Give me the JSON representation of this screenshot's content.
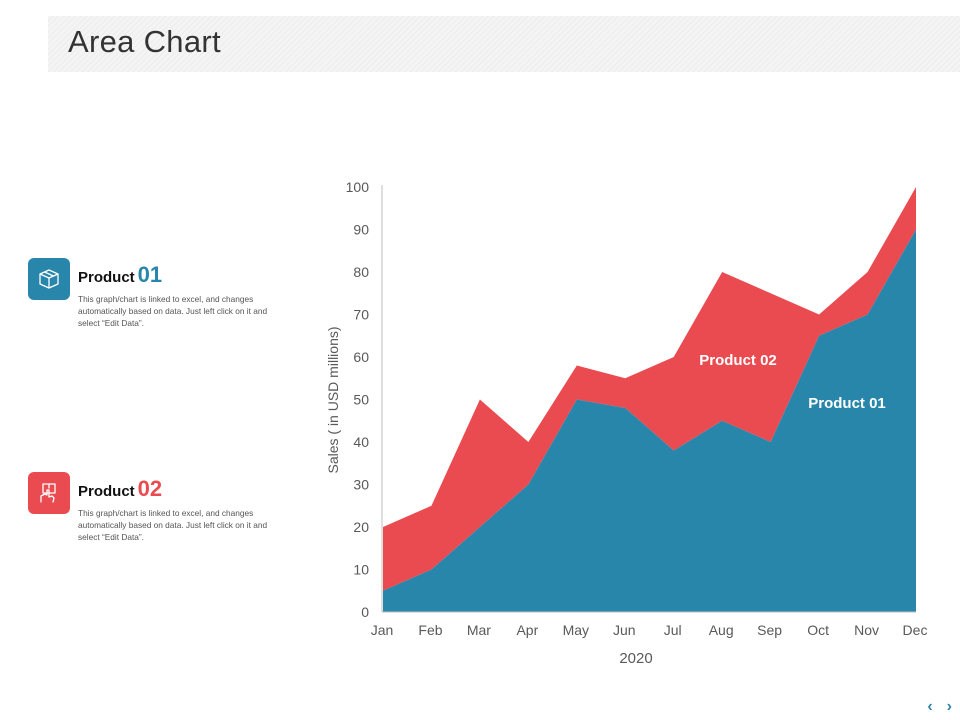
{
  "header": {
    "title": "Area Chart"
  },
  "legend": [
    {
      "name": "Product",
      "num": "01",
      "color": "#2986ab",
      "icon": "box-icon",
      "desc": "This graph/chart is linked to excel, and changes automatically based on data. Just left click on it and select “Edit Data”."
    },
    {
      "name": "Product",
      "num": "02",
      "color": "#e94b50",
      "icon": "hand-package-icon",
      "desc": "This graph/chart is linked to excel, and changes automatically based on data. Just left click on it and select “Edit Data”."
    }
  ],
  "nav": {
    "prev": "‹",
    "next": "›"
  },
  "chart_data": {
    "type": "area",
    "stacked": true,
    "categories": [
      "Jan",
      "Feb",
      "Mar",
      "Apr",
      "May",
      "Jun",
      "Jul",
      "Aug",
      "Sep",
      "Oct",
      "Nov",
      "Dec"
    ],
    "series": [
      {
        "name": "Product 01",
        "color": "#2986ab",
        "values": [
          5,
          10,
          20,
          30,
          50,
          48,
          38,
          45,
          40,
          65,
          70,
          90
        ]
      },
      {
        "name": "Product 02",
        "color": "#e94b50",
        "values": [
          15,
          15,
          30,
          10,
          8,
          7,
          22,
          35,
          35,
          5,
          10,
          10
        ]
      }
    ],
    "series_labels": [
      "Product 02",
      "Product 01"
    ],
    "xlabel": "2020",
    "ylabel": "Sales  ( in USD millions)",
    "ylim": [
      0,
      100
    ],
    "yticks": [
      0,
      10,
      20,
      30,
      40,
      50,
      60,
      70,
      80,
      90,
      100
    ],
    "grid": false
  }
}
